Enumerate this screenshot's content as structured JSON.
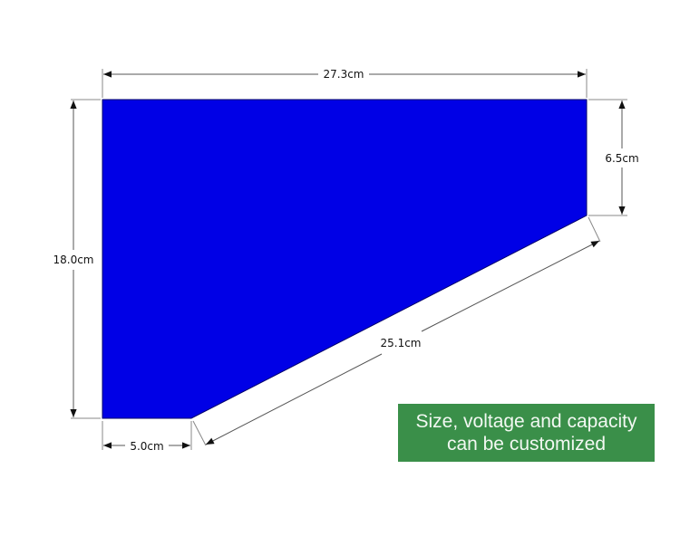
{
  "diagram": {
    "shape_color": "#0000e6",
    "dimensions": {
      "top_width": "27.3cm",
      "left_height": "18.0cm",
      "right_height": "6.5cm",
      "slant_length": "25.1cm",
      "bottom_width": "5.0cm"
    }
  },
  "note": {
    "line1": "Size, voltage and capacity",
    "line2": "can be customized",
    "background": "#3a8f49"
  }
}
